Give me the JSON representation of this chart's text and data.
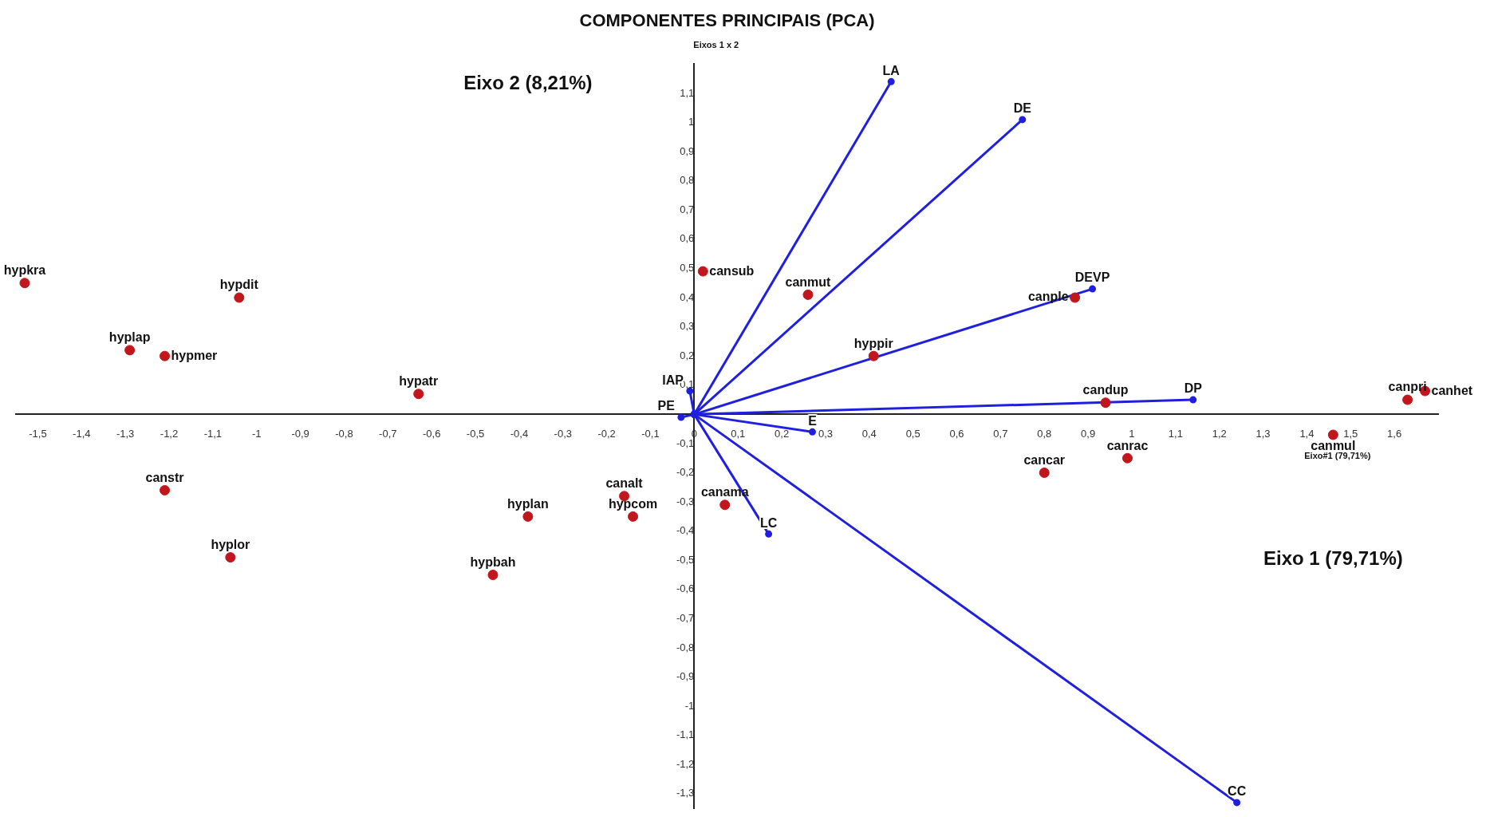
{
  "chart_data": {
    "type": "scatter",
    "title": "COMPONENTES PRINCIPAIS (PCA)",
    "xlabel": "Eixo 1 (79,71%)",
    "ylabel": "Eixo 2 (8,21%)",
    "annotations": [
      "Eixos 1 x 2",
      "Eixo#1 (79,71%)"
    ],
    "xlim": [
      -1.55,
      1.7
    ],
    "ylim": [
      -1.35,
      1.2
    ],
    "xticks": [
      {
        "value": -1.5,
        "label": "-1,5"
      },
      {
        "value": -1.4,
        "label": "-1,4"
      },
      {
        "value": -1.3,
        "label": "-1,3"
      },
      {
        "value": -1.2,
        "label": "-1,2"
      },
      {
        "value": -1.1,
        "label": "-1,1"
      },
      {
        "value": -1,
        "label": "-1"
      },
      {
        "value": -0.9,
        "label": "-0,9"
      },
      {
        "value": -0.8,
        "label": "-0,8"
      },
      {
        "value": -0.7,
        "label": "-0,7"
      },
      {
        "value": -0.6,
        "label": "-0,6"
      },
      {
        "value": -0.5,
        "label": "-0,5"
      },
      {
        "value": -0.4,
        "label": "-0,4"
      },
      {
        "value": -0.3,
        "label": "-0,3"
      },
      {
        "value": -0.2,
        "label": "-0,2"
      },
      {
        "value": -0.1,
        "label": "-0,1"
      },
      {
        "value": 0,
        "label": "0"
      },
      {
        "value": 0.1,
        "label": "0,1"
      },
      {
        "value": 0.2,
        "label": "0,2"
      },
      {
        "value": 0.3,
        "label": "0,3"
      },
      {
        "value": 0.4,
        "label": "0,4"
      },
      {
        "value": 0.5,
        "label": "0,5"
      },
      {
        "value": 0.6,
        "label": "0,6"
      },
      {
        "value": 0.7,
        "label": "0,7"
      },
      {
        "value": 0.8,
        "label": "0,8"
      },
      {
        "value": 0.9,
        "label": "0,9"
      },
      {
        "value": 1,
        "label": "1"
      },
      {
        "value": 1.1,
        "label": "1,1"
      },
      {
        "value": 1.2,
        "label": "1,2"
      },
      {
        "value": 1.3,
        "label": "1,3"
      },
      {
        "value": 1.4,
        "label": "1,4"
      },
      {
        "value": 1.5,
        "label": "1,5"
      },
      {
        "value": 1.6,
        "label": "1,6"
      }
    ],
    "yticks": [
      {
        "value": -1.3,
        "label": "-1,3"
      },
      {
        "value": -1.2,
        "label": "-1,2"
      },
      {
        "value": -1.1,
        "label": "-1,1"
      },
      {
        "value": -1,
        "label": "-1"
      },
      {
        "value": -0.9,
        "label": "-0,9"
      },
      {
        "value": -0.8,
        "label": "-0,8"
      },
      {
        "value": -0.7,
        "label": "-0,7"
      },
      {
        "value": -0.6,
        "label": "-0,6"
      },
      {
        "value": -0.5,
        "label": "-0,5"
      },
      {
        "value": -0.4,
        "label": "-0,4"
      },
      {
        "value": -0.3,
        "label": "-0,3"
      },
      {
        "value": -0.2,
        "label": "-0,2"
      },
      {
        "value": -0.1,
        "label": "-0,1"
      },
      {
        "value": 0.1,
        "label": "0,1"
      },
      {
        "value": 0.2,
        "label": "0,2"
      },
      {
        "value": 0.3,
        "label": "0,3"
      },
      {
        "value": 0.4,
        "label": "0,4"
      },
      {
        "value": 0.5,
        "label": "0,5"
      },
      {
        "value": 0.6,
        "label": "0,6"
      },
      {
        "value": 0.7,
        "label": "0,7"
      },
      {
        "value": 0.8,
        "label": "0,8"
      },
      {
        "value": 0.9,
        "label": "0,9"
      },
      {
        "value": 1,
        "label": "1"
      },
      {
        "value": 1.1,
        "label": "1,1"
      }
    ],
    "grid": false,
    "legend": false,
    "marker": "circle",
    "series": [
      {
        "color": "#c0161c",
        "x": [
          -1.53,
          -1.04,
          -1.29,
          -1.21,
          -0.63,
          0.02,
          0.26,
          0.87,
          0.41,
          0.94,
          1.63,
          1.67,
          1.46,
          0.8,
          0.99,
          0.07,
          -0.16,
          -0.14,
          -0.38,
          -0.46,
          -1.21,
          -1.06
        ],
        "values": [
          0.45,
          0.4,
          0.22,
          0.2,
          0.07,
          0.49,
          0.41,
          0.4,
          0.2,
          0.04,
          0.05,
          0.08,
          -0.07,
          -0.2,
          -0.15,
          -0.31,
          -0.28,
          -0.35,
          -0.35,
          -0.55,
          -0.26,
          -0.49
        ],
        "value_labels": [
          "hypkra",
          "hypdit",
          "hyplap",
          "hypmer",
          "hypatr",
          "cansub",
          "canmut",
          "canple",
          "hyppir",
          "candup",
          "canpri",
          "canhet",
          "canmul",
          "cancar",
          "canrac",
          "canama",
          "canalt",
          "hypcom",
          "hyplan",
          "hypbah",
          "canstr",
          "hyplor"
        ]
      },
      {
        "type": "line",
        "name": "LA",
        "color": "#1f1fe0",
        "x": [
          0,
          0.45
        ],
        "values": [
          0,
          1.14
        ]
      },
      {
        "type": "line",
        "name": "DE",
        "color": "#1f1fe0",
        "x": [
          0,
          0.75
        ],
        "values": [
          0,
          1.01
        ]
      },
      {
        "type": "line",
        "name": "DEVP",
        "color": "#1f1fe0",
        "x": [
          0,
          0.91
        ],
        "values": [
          0,
          0.43
        ]
      },
      {
        "type": "line",
        "name": "DP",
        "color": "#1f1fe0",
        "x": [
          0,
          1.14
        ],
        "values": [
          0,
          0.05
        ]
      },
      {
        "type": "line",
        "name": "E",
        "color": "#1f1fe0",
        "x": [
          0,
          0.27
        ],
        "values": [
          0,
          -0.06
        ]
      },
      {
        "type": "line",
        "name": "LC",
        "color": "#1f1fe0",
        "x": [
          0,
          0.17
        ],
        "values": [
          0,
          -0.41
        ]
      },
      {
        "type": "line",
        "name": "CC",
        "color": "#1f1fe0",
        "x": [
          0,
          1.24
        ],
        "values": [
          0,
          -1.33
        ]
      },
      {
        "type": "line",
        "name": "IAP",
        "color": "#1f1fe0",
        "x": [
          0,
          -0.01
        ],
        "values": [
          0,
          0.08
        ]
      },
      {
        "type": "line",
        "name": "PE",
        "color": "#1f1fe0",
        "x": [
          0,
          -0.03
        ],
        "values": [
          0,
          -0.01
        ]
      }
    ]
  }
}
